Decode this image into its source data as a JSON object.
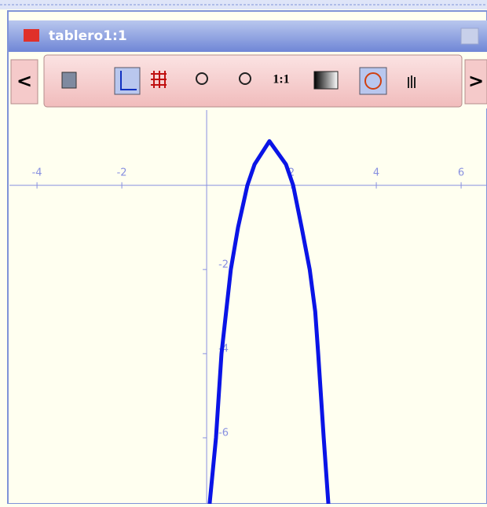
{
  "window": {
    "title": "tablero1:1"
  },
  "toolbar": {
    "scroll_left": "<",
    "one_to_one": "1:1",
    "scroll_right": ">"
  },
  "chart_data": {
    "type": "line",
    "xlim": [
      -4.65,
      6.61
    ],
    "ylim": [
      -7.57,
      1.79
    ],
    "xticks": [
      -4,
      -2,
      2,
      4,
      6
    ],
    "yticks": [
      -2,
      -4,
      -6
    ],
    "series": [
      {
        "color": "#0a14e6",
        "x": [
          0.07,
          0.22,
          0.35,
          0.46,
          0.57,
          0.74,
          0.96,
          1.13,
          1.48,
          1.87,
          2.04,
          2.24,
          2.43,
          2.56,
          2.63,
          2.76,
          2.87
        ],
        "values": [
          -7.57,
          -6,
          -4,
          -3,
          -2,
          -1,
          0,
          0.5,
          1.05,
          0.5,
          0,
          -1,
          -2,
          -3,
          -4,
          -6,
          -7.57
        ]
      }
    ]
  }
}
